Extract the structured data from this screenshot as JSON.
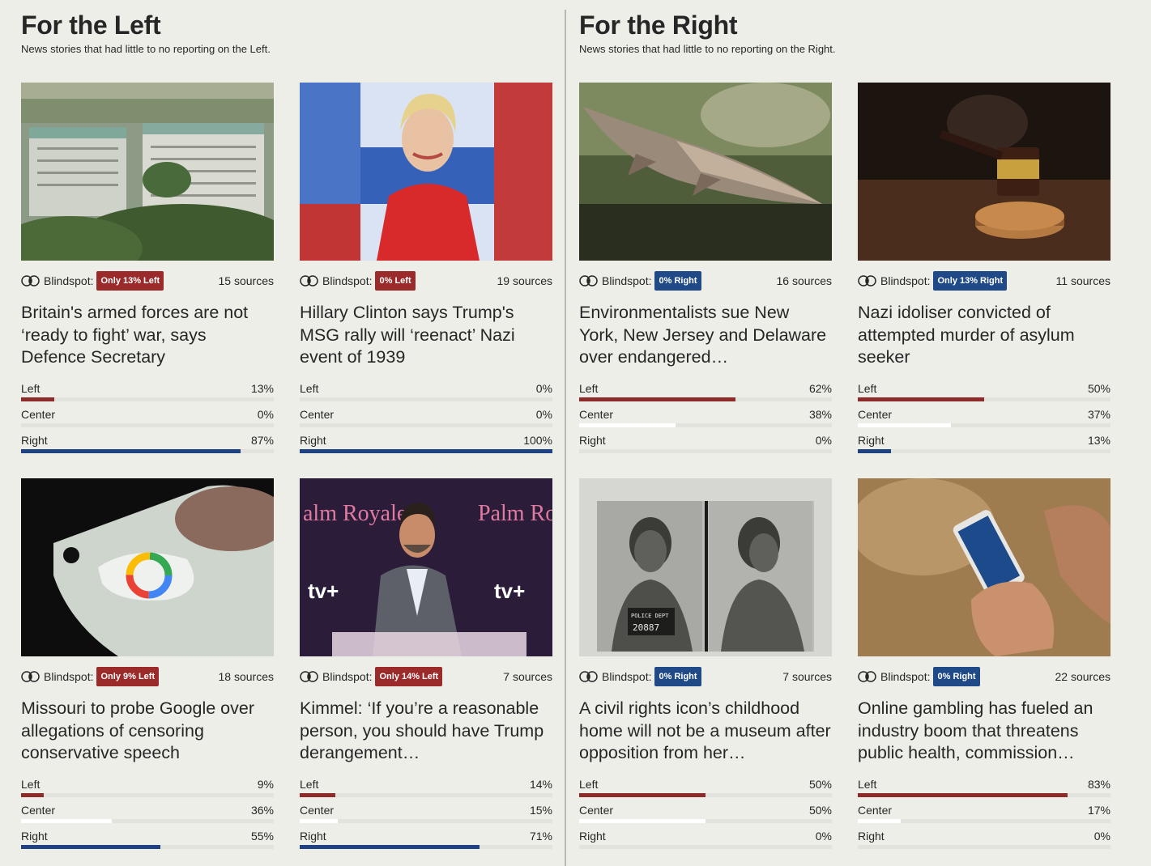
{
  "left_section": {
    "title": "For the Left",
    "subtitle": "News stories that had little to no reporting on the Left."
  },
  "right_section": {
    "title": "For the Right",
    "subtitle": "News stories that had little to no reporting on the Right."
  },
  "blindspot_label": "Blindspot:",
  "colors": {
    "left": "#8d2b2b",
    "center": "#ffffff",
    "right": "#1f4283",
    "badge_left": "#9b2a2a",
    "badge_right": "#204a87"
  },
  "left_cards": [
    {
      "image": "london-government-buildings-photo",
      "badge": "Only 13% Left",
      "badge_side": "left",
      "sources": "15 sources",
      "headline": "Britain's armed forces are not ‘ready to fight’ war, says Defence Secretary",
      "bias": [
        {
          "label": "Left",
          "pct": "13%",
          "value": 13,
          "side": "left"
        },
        {
          "label": "Center",
          "pct": "0%",
          "value": 0,
          "side": "center"
        },
        {
          "label": "Right",
          "pct": "87%",
          "value": 87,
          "side": "right"
        }
      ]
    },
    {
      "image": "hillary-clinton-photo",
      "badge": "0% Left",
      "badge_side": "left",
      "sources": "19 sources",
      "headline": "Hillary Clinton says Trump's MSG rally will ‘reenact’ Nazi event of 1939",
      "bias": [
        {
          "label": "Left",
          "pct": "0%",
          "value": 0,
          "side": "left"
        },
        {
          "label": "Center",
          "pct": "0%",
          "value": 0,
          "side": "center"
        },
        {
          "label": "Right",
          "pct": "100%",
          "value": 100,
          "side": "right"
        }
      ]
    },
    {
      "image": "google-phone-photo",
      "badge": "Only 9% Left",
      "badge_side": "left",
      "sources": "18 sources",
      "headline": "Missouri to probe Google over allegations of censoring conservative speech",
      "bias": [
        {
          "label": "Left",
          "pct": "9%",
          "value": 9,
          "side": "left"
        },
        {
          "label": "Center",
          "pct": "36%",
          "value": 36,
          "side": "center"
        },
        {
          "label": "Right",
          "pct": "55%",
          "value": 55,
          "side": "right"
        }
      ]
    },
    {
      "image": "kimmel-podium-photo",
      "badge": "Only 14% Left",
      "badge_side": "left",
      "sources": "7 sources",
      "headline": "Kimmel: ‘If you’re a reasonable person, you should have Trump derangement…",
      "bias": [
        {
          "label": "Left",
          "pct": "14%",
          "value": 14,
          "side": "left"
        },
        {
          "label": "Center",
          "pct": "15%",
          "value": 15,
          "side": "center"
        },
        {
          "label": "Right",
          "pct": "71%",
          "value": 71,
          "side": "right"
        }
      ]
    }
  ],
  "right_cards": [
    {
      "image": "sturgeon-fish-photo",
      "badge": "0% Right",
      "badge_side": "right",
      "sources": "16 sources",
      "headline": "Environmentalists sue New York, New Jersey and Delaware over endangered…",
      "bias": [
        {
          "label": "Left",
          "pct": "62%",
          "value": 62,
          "side": "left"
        },
        {
          "label": "Center",
          "pct": "38%",
          "value": 38,
          "side": "center"
        },
        {
          "label": "Right",
          "pct": "0%",
          "value": 0,
          "side": "right"
        }
      ]
    },
    {
      "image": "gavel-photo",
      "badge": "Only 13% Right",
      "badge_side": "right",
      "sources": "11 sources",
      "headline": "Nazi idoliser convicted of attempted murder of asylum seeker",
      "bias": [
        {
          "label": "Left",
          "pct": "50%",
          "value": 50,
          "side": "left"
        },
        {
          "label": "Center",
          "pct": "37%",
          "value": 37,
          "side": "center"
        },
        {
          "label": "Right",
          "pct": "13%",
          "value": 13,
          "side": "right"
        }
      ]
    },
    {
      "image": "mugshot-photo",
      "badge": "0% Right",
      "badge_side": "right",
      "sources": "7 sources",
      "headline": "A civil rights icon’s childhood home will not be a museum after opposition from her…",
      "bias": [
        {
          "label": "Left",
          "pct": "50%",
          "value": 50,
          "side": "left"
        },
        {
          "label": "Center",
          "pct": "50%",
          "value": 50,
          "side": "center"
        },
        {
          "label": "Right",
          "pct": "0%",
          "value": 0,
          "side": "right"
        }
      ]
    },
    {
      "image": "phone-gambling-photo",
      "badge": "0% Right",
      "badge_side": "right",
      "sources": "22 sources",
      "headline": "Online gambling has fueled an industry boom that threatens public health, commission…",
      "bias": [
        {
          "label": "Left",
          "pct": "83%",
          "value": 83,
          "side": "left"
        },
        {
          "label": "Center",
          "pct": "17%",
          "value": 17,
          "side": "center"
        },
        {
          "label": "Right",
          "pct": "0%",
          "value": 0,
          "side": "right"
        }
      ]
    }
  ]
}
